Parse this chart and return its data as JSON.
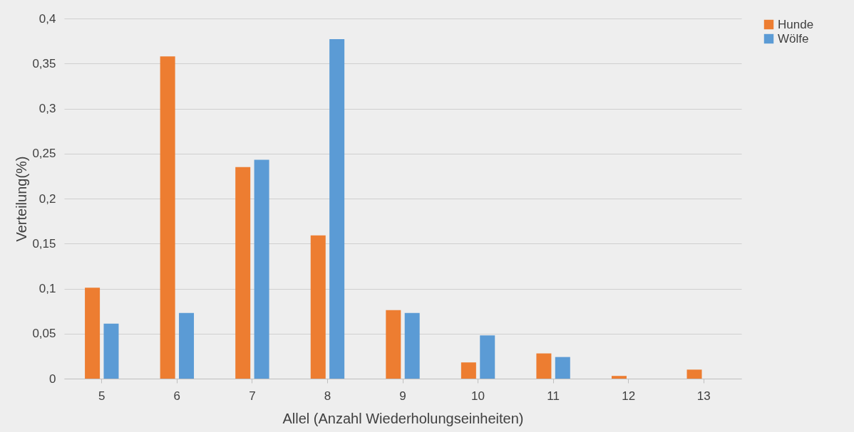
{
  "chart_data": {
    "type": "bar",
    "xlabel": "Allel (Anzahl Wiederholungseinheiten)",
    "ylabel": "Verteilung(%)",
    "categories": [
      "5",
      "6",
      "7",
      "8",
      "9",
      "10",
      "11",
      "12",
      "13"
    ],
    "series": [
      {
        "name": "Hunde",
        "color": "#ed7d31",
        "values": [
          0.101,
          0.358,
          0.235,
          0.159,
          0.076,
          0.018,
          0.028,
          0.003,
          0.01
        ]
      },
      {
        "name": "Wölfe",
        "color": "#5b9bd5",
        "values": [
          0.061,
          0.073,
          0.243,
          0.377,
          0.073,
          0.048,
          0.024,
          0,
          0
        ]
      }
    ],
    "ylim": [
      0,
      0.4
    ],
    "yticks": [
      0,
      {
        "value": 0.05,
        "label": "0,05"
      },
      {
        "value": 0.1,
        "label": "0,1"
      },
      {
        "value": 0.15,
        "label": "0,15"
      },
      {
        "value": 0.2,
        "label": "0,2"
      },
      {
        "value": 0.25,
        "label": "0,25"
      },
      {
        "value": 0.3,
        "label": "0,3"
      },
      {
        "value": 0.35,
        "label": "0,35"
      },
      {
        "value": 0.4,
        "label": "0,4"
      }
    ],
    "grid": "y",
    "legend": "right"
  }
}
